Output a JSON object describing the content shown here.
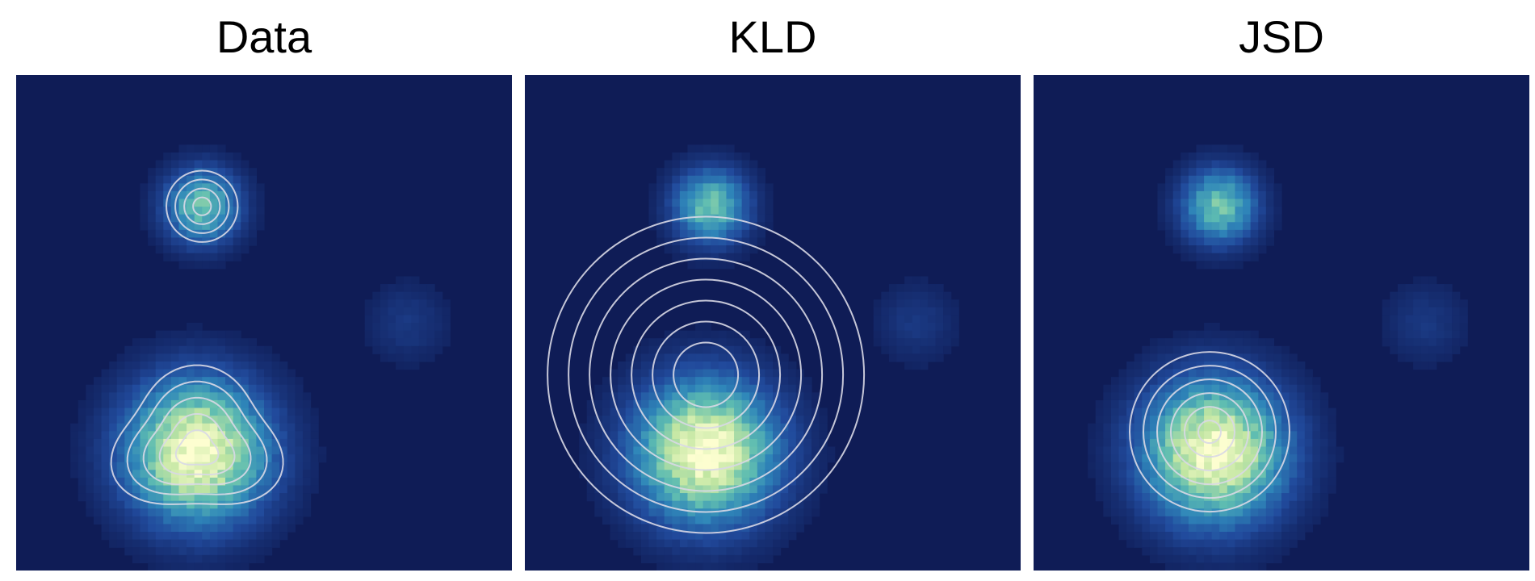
{
  "palette": {
    "background": "#0f1c56",
    "contour": "#d9d9e6",
    "colormap": [
      "#0f1c56",
      "#214a9c",
      "#2f86b9",
      "#5fbdb1",
      "#c2e6a2",
      "#fdfed0"
    ]
  },
  "chart_data": [
    {
      "type": "heatmap",
      "title": "Data",
      "xlabel": "",
      "ylabel": "",
      "grid": false,
      "density_components": [
        {
          "center": [
            0.375,
            0.265
          ],
          "sigma": 0.045,
          "peak": 0.55
        },
        {
          "center": [
            0.365,
            0.76
          ],
          "sigma": 0.085,
          "peak": 1.0
        },
        {
          "center": [
            0.79,
            0.5
          ],
          "sigma": 0.05,
          "peak": 0.06
        }
      ],
      "contours": [
        {
          "component": 0,
          "levels": 4
        },
        {
          "component": 1,
          "levels": 5,
          "shape": "rounded-triangle"
        }
      ]
    },
    {
      "type": "heatmap",
      "title": "KLD",
      "xlabel": "",
      "ylabel": "",
      "grid": false,
      "density_components": [
        {
          "center": [
            0.375,
            0.265
          ],
          "sigma": 0.045,
          "peak": 0.55
        },
        {
          "center": [
            0.365,
            0.76
          ],
          "sigma": 0.085,
          "peak": 1.0
        },
        {
          "center": [
            0.79,
            0.5
          ],
          "sigma": 0.05,
          "peak": 0.06
        }
      ],
      "contours": [
        {
          "center": [
            0.365,
            0.605
          ],
          "levels": 7,
          "spread": "wide-single-gaussian"
        }
      ]
    },
    {
      "type": "heatmap",
      "title": "JSD",
      "xlabel": "",
      "ylabel": "",
      "grid": false,
      "density_components": [
        {
          "center": [
            0.375,
            0.265
          ],
          "sigma": 0.045,
          "peak": 0.55
        },
        {
          "center": [
            0.365,
            0.76
          ],
          "sigma": 0.085,
          "peak": 1.0
        },
        {
          "center": [
            0.79,
            0.5
          ],
          "sigma": 0.05,
          "peak": 0.06
        }
      ],
      "contours": [
        {
          "center": [
            0.355,
            0.72
          ],
          "levels": 6,
          "spread": "tight-single-gaussian"
        }
      ]
    }
  ]
}
